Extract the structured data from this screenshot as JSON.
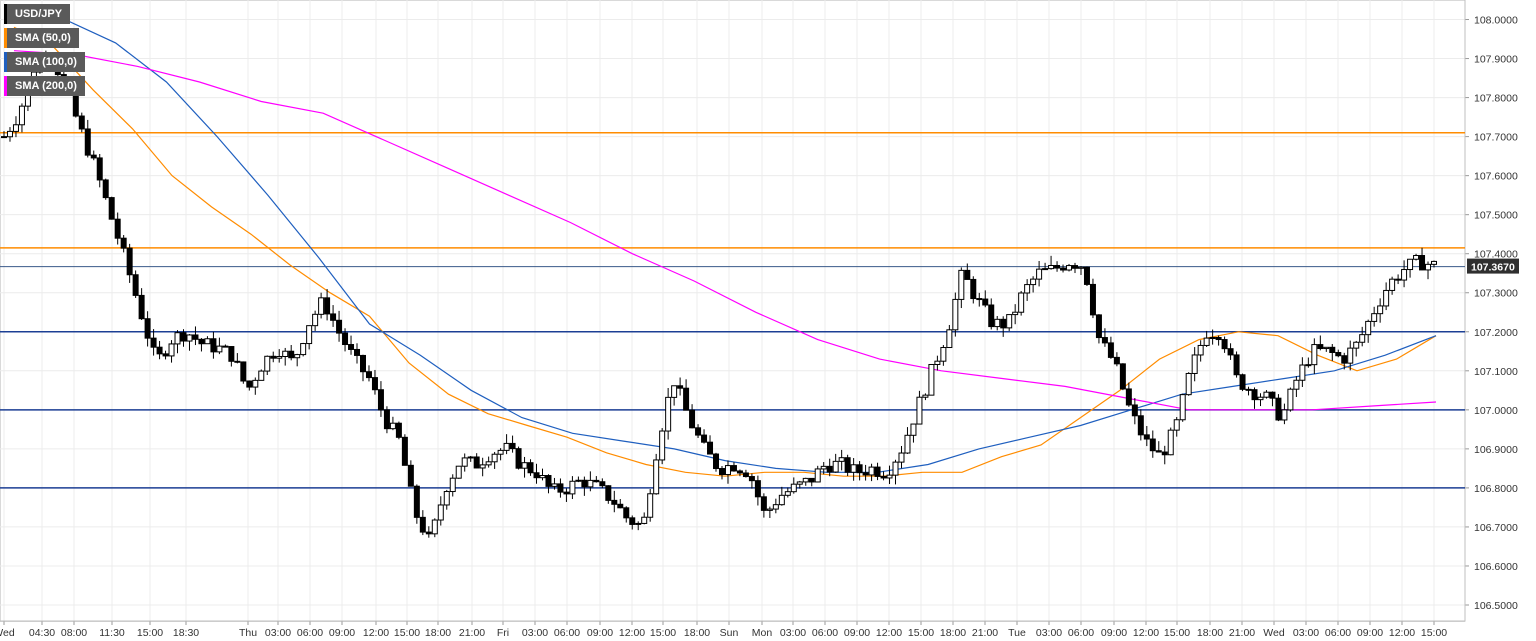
{
  "legend": [
    {
      "label": "USD/JPY",
      "color": "#000000"
    },
    {
      "label": "SMA (50,0)",
      "color": "#ff8c00"
    },
    {
      "label": "SMA (100,0)",
      "color": "#1f5fbf"
    },
    {
      "label": "SMA (200,0)",
      "color": "#ff00ff"
    }
  ],
  "current_price": "107.3670",
  "chart_data": {
    "type": "candlestick",
    "symbol": "USD/JPY",
    "ylim": [
      106.47,
      108.05
    ],
    "y_ticks": [
      "106.5000",
      "106.6000",
      "106.7000",
      "106.8000",
      "106.9000",
      "107.0000",
      "107.1000",
      "107.2000",
      "107.3000",
      "107.4000",
      "107.5000",
      "107.6000",
      "107.7000",
      "107.8000",
      "107.9000",
      "108.0000"
    ],
    "x_ticks": [
      "Wed",
      "04:30",
      "08:00",
      "11:30",
      "15:00",
      "18:30",
      "Thu",
      "03:00",
      "06:00",
      "09:00",
      "12:00",
      "15:00",
      "18:00",
      "21:00",
      "Fri",
      "03:00",
      "06:00",
      "09:00",
      "12:00",
      "15:00",
      "18:00",
      "Sun",
      "Mon",
      "03:00",
      "06:00",
      "09:00",
      "12:00",
      "15:00",
      "18:00",
      "21:00",
      "Tue",
      "03:00",
      "06:00",
      "09:00",
      "12:00",
      "15:00",
      "18:00",
      "21:00",
      "Wed",
      "03:00",
      "06:00",
      "09:00",
      "12:00",
      "15:00"
    ],
    "horizontal_levels": [
      {
        "value": 107.71,
        "color": "#ff8c00"
      },
      {
        "value": 107.415,
        "color": "#ff8c00"
      },
      {
        "value": 107.2,
        "color": "#1c3f94"
      },
      {
        "value": 107.0,
        "color": "#1c3f94"
      },
      {
        "value": 106.8,
        "color": "#1c3f94"
      }
    ],
    "price_anchors": [
      107.7,
      107.76,
      107.88,
      107.92,
      107.83,
      107.72,
      107.62,
      107.5,
      107.38,
      107.25,
      107.12,
      107.18,
      107.2,
      107.17,
      107.16,
      107.14,
      107.05,
      107.12,
      107.16,
      107.12,
      107.22,
      107.28,
      107.2,
      107.13,
      107.08,
      106.98,
      106.92,
      106.74,
      106.66,
      106.8,
      106.87,
      106.86,
      106.89,
      106.9,
      106.86,
      106.84,
      106.79,
      106.8,
      106.82,
      106.8,
      106.77,
      106.72,
      106.7,
      106.92,
      107.08,
      106.98,
      106.9,
      106.85,
      106.86,
      106.84,
      106.73,
      106.78,
      106.8,
      106.82,
      106.86,
      106.86,
      106.84,
      106.85,
      106.84,
      106.9,
      107.0,
      107.1,
      107.2,
      107.35,
      107.28,
      107.22,
      107.22,
      107.3,
      107.35,
      107.36,
      107.38,
      107.37,
      107.18,
      107.12,
      107.0,
      106.92,
      106.88,
      106.95,
      107.1,
      107.2,
      107.2,
      107.08,
      107.05,
      107.03,
      106.98,
      107.08,
      107.15,
      107.15,
      107.13,
      107.17,
      107.25,
      107.32,
      107.36,
      107.38,
      107.37
    ],
    "series": [
      {
        "name": "SMA (50,0)",
        "color": "#ff8c00",
        "values": [
          107.98,
          107.93,
          107.82,
          107.72,
          107.6,
          107.52,
          107.45,
          107.37,
          107.3,
          107.24,
          107.12,
          107.04,
          106.99,
          106.96,
          106.93,
          106.89,
          106.86,
          106.84,
          106.83,
          106.84,
          106.84,
          106.83,
          106.83,
          106.84,
          106.84,
          106.88,
          106.91,
          106.98,
          107.05,
          107.13,
          107.18,
          107.2,
          107.19,
          107.14,
          107.1,
          107.13,
          107.19
        ]
      },
      {
        "name": "SMA (100,0)",
        "color": "#1f5fbf",
        "values": [
          108.02,
          108.0,
          107.94,
          107.84,
          107.7,
          107.55,
          107.39,
          107.22,
          107.14,
          107.05,
          106.98,
          106.94,
          106.92,
          106.9,
          106.87,
          106.85,
          106.84,
          106.84,
          106.86,
          106.9,
          106.93,
          106.96,
          107.0,
          107.04,
          107.06,
          107.08,
          107.1,
          107.14,
          107.19
        ]
      },
      {
        "name": "SMA (200,0)",
        "color": "#ff00ff",
        "values": [
          107.92,
          107.91,
          107.88,
          107.84,
          107.79,
          107.76,
          107.69,
          107.62,
          107.55,
          107.48,
          107.4,
          107.33,
          107.25,
          107.18,
          107.13,
          107.1,
          107.08,
          107.06,
          107.03,
          107.0,
          107.0,
          107.0,
          107.01,
          107.02
        ]
      }
    ]
  }
}
